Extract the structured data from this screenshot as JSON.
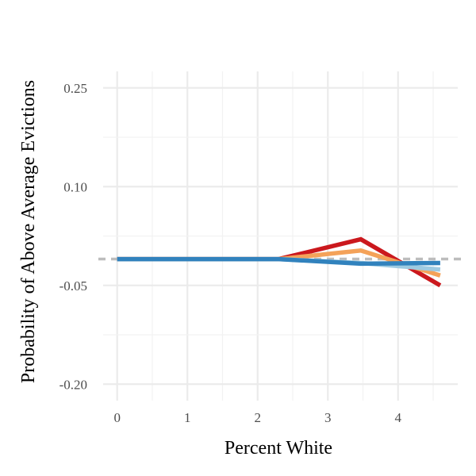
{
  "chart_data": {
    "type": "line",
    "title": "",
    "xlabel": "Percent White",
    "ylabel": "Probability of Above Average Evictions",
    "x_ticks": [
      0,
      1,
      2,
      3,
      4
    ],
    "y_ticks": [
      0.25,
      0.1,
      -0.05,
      -0.2
    ],
    "y_tick_labels": [
      "0.25",
      "0.10",
      "-0.05",
      "-0.20"
    ],
    "xlim": [
      -0.2,
      4.85
    ],
    "ylim": [
      -0.225,
      0.275
    ],
    "grid": true,
    "reference_line": {
      "y": -0.01,
      "style": "dashed",
      "color": "#bdbdbd"
    },
    "x": [
      0,
      1,
      2,
      2.3,
      3.47,
      4.6
    ],
    "series": [
      {
        "color": "#cb181d",
        "values": [
          -0.01,
          -0.01,
          -0.01,
          -0.01,
          0.02,
          -0.05
        ]
      },
      {
        "color": "#f4a259",
        "values": [
          -0.01,
          -0.01,
          -0.01,
          -0.01,
          0.003,
          -0.035
        ]
      },
      {
        "color": "#9ecae1",
        "values": [
          -0.01,
          -0.01,
          -0.01,
          -0.01,
          -0.016,
          -0.026
        ]
      },
      {
        "color": "#3182bd",
        "values": [
          -0.01,
          -0.01,
          -0.01,
          -0.01,
          -0.017,
          -0.016
        ]
      }
    ]
  }
}
